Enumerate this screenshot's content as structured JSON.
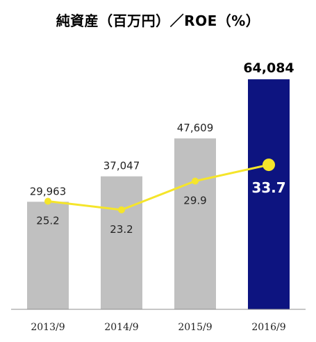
{
  "chart_data": {
    "type": "bar",
    "title": "純資産（百万円）／ROE（%）",
    "categories": [
      "2013/9",
      "2014/9",
      "2015/9",
      "2016/9"
    ],
    "series": [
      {
        "name": "純資産（百万円）",
        "type": "bar",
        "values": [
          29963,
          37047,
          47609,
          64084
        ],
        "labels": [
          "29,963",
          "37,047",
          "47,609",
          "64,084"
        ]
      },
      {
        "name": "ROE（%）",
        "type": "line",
        "values": [
          25.2,
          23.2,
          29.9,
          33.7
        ],
        "labels": [
          "25.2",
          "23.2",
          "29.9",
          "33.7"
        ]
      }
    ],
    "bar_ylim": [
      0,
      67000
    ],
    "line_ylim": [
      0,
      47
    ],
    "grid": false,
    "colors": {
      "bar": "#c0c0c0",
      "bar_highlight": "#0d1480",
      "line": "#f5e52a",
      "axis": "#8c8c8c",
      "text": "#222222",
      "highlight_text": "#ffffff"
    }
  }
}
